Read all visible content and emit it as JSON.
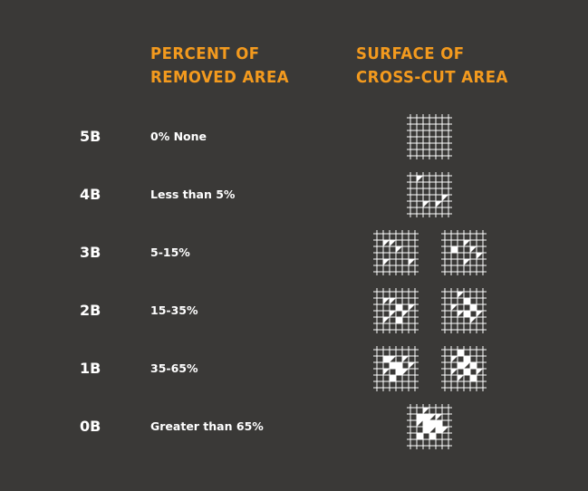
{
  "headers": {
    "removed_area": [
      "PERCENT OF",
      "REMOVED AREA"
    ],
    "cross_cut": [
      "SURFACE OF",
      "CROSS-CUT AREA"
    ]
  },
  "rows": [
    {
      "grade": "5B",
      "percent": "0% None"
    },
    {
      "grade": "4B",
      "percent": "Less than 5%"
    },
    {
      "grade": "3B",
      "percent": "5-15%"
    },
    {
      "grade": "2B",
      "percent": "15-35%"
    },
    {
      "grade": "1B",
      "percent": "35-65%"
    },
    {
      "grade": "0B",
      "percent": "Greater than 65%"
    }
  ],
  "colors": {
    "background": "#3a3937",
    "accent": "#f39a1e",
    "text": "#ffffff"
  }
}
